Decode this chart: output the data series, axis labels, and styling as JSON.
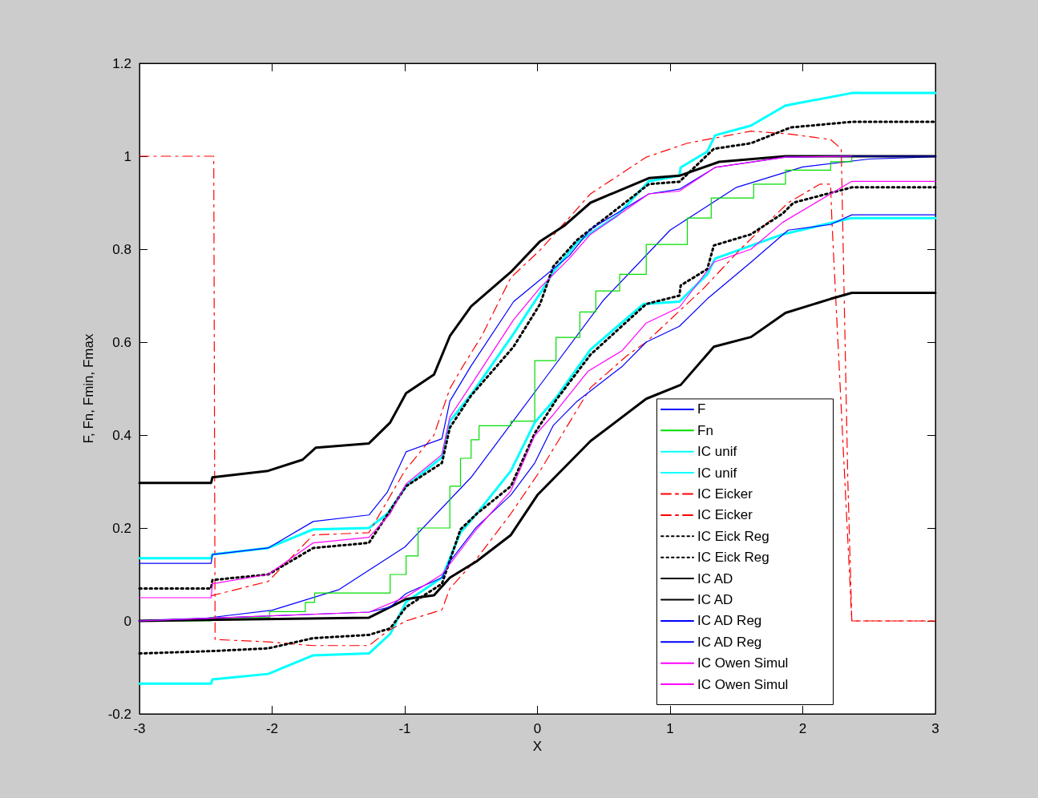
{
  "chart_data": {
    "type": "line",
    "xlabel": "X",
    "ylabel": "F, Fn, Fmin, Fmax",
    "xlim": [
      -3,
      3
    ],
    "xticks": [
      -3,
      -2,
      -1,
      0,
      1,
      2,
      3
    ],
    "ylim": [
      -0.2,
      1.2
    ],
    "yticks": [
      -0.2,
      0,
      0.2,
      0.4,
      0.6,
      0.8,
      1,
      1.2
    ],
    "grid": false,
    "legend": "bottom right",
    "marker": "none",
    "series": [
      {
        "name": "F",
        "color": "#0000ff",
        "line_style": "solid",
        "x": [
          -3,
          -2.5,
          -2,
          -1.5,
          -1,
          -0.5,
          0,
          0.5,
          1,
          1.5,
          2,
          2.5,
          3
        ],
        "values": [
          0.001,
          0.006,
          0.023,
          0.067,
          0.159,
          0.309,
          0.5,
          0.691,
          0.841,
          0.933,
          0.977,
          0.994,
          0.999
        ]
      },
      {
        "name": "Fn",
        "type": "step",
        "color": "#00dd00",
        "line_style": "solid",
        "x": [
          -3,
          -2.46,
          -2.02,
          -1.75,
          -1.68,
          -1.27,
          -1.11,
          -0.99,
          -0.9,
          -0.72,
          -0.66,
          -0.58,
          -0.5,
          -0.44,
          -0.2,
          -0.02,
          0.14,
          0.32,
          0.44,
          0.62,
          0.82,
          1.07,
          1.13,
          1.31,
          1.63,
          1.87,
          2.21,
          2.37,
          3
        ],
        "values": [
          0,
          0.007,
          0.02,
          0.04,
          0.06,
          0.06,
          0.1,
          0.14,
          0.2,
          0.2,
          0.29,
          0.35,
          0.39,
          0.42,
          0.43,
          0.56,
          0.61,
          0.665,
          0.71,
          0.746,
          0.81,
          0.81,
          0.867,
          0.91,
          0.94,
          0.97,
          0.988,
          1,
          1
        ]
      },
      {
        "name": "IC unif",
        "color": "#00ffff",
        "line_style": "solid",
        "x": [
          -3,
          -2.46,
          -2.45,
          -2.03,
          -1.69,
          -1.27,
          -1.13,
          -0.99,
          -0.72,
          -0.66,
          -0.5,
          -0.18,
          0.02,
          0.12,
          0.3,
          0.6,
          0.84,
          1.07,
          1.08,
          1.28,
          1.34,
          1.61,
          1.87,
          2.37,
          3
        ],
        "values": [
          0.135,
          0.135,
          0.143,
          0.157,
          0.197,
          0.2,
          0.231,
          0.29,
          0.352,
          0.43,
          0.487,
          0.618,
          0.705,
          0.751,
          0.815,
          0.872,
          0.946,
          0.958,
          0.976,
          1.01,
          1.045,
          1.066,
          1.109,
          1.136,
          1.136
        ]
      },
      {
        "name": "IC unif",
        "color": "#00ffff",
        "line_style": "solid",
        "x": [
          -3,
          -2.46,
          -2.45,
          -2.03,
          -1.69,
          -1.27,
          -1.11,
          -0.99,
          -0.72,
          -0.58,
          -0.46,
          -0.2,
          -0.02,
          0.14,
          0.4,
          0.8,
          1.07,
          1.28,
          1.34,
          1.85,
          2.37,
          3
        ],
        "values": [
          -0.135,
          -0.135,
          -0.126,
          -0.114,
          -0.074,
          -0.07,
          -0.028,
          0.041,
          0.093,
          0.19,
          0.23,
          0.323,
          0.427,
          0.48,
          0.584,
          0.682,
          0.687,
          0.746,
          0.78,
          0.832,
          0.867,
          0.867
        ]
      },
      {
        "name": "IC Eicker",
        "color": "#ff0000",
        "line_style": "dashed",
        "x": [
          -2.46,
          -2.03,
          -1.69,
          -1.27,
          -1,
          -0.78,
          -0.66,
          -0.56,
          -0.42,
          -0.2,
          0.02,
          0.4,
          0.82,
          1.13,
          1.61,
          1.89,
          2.21,
          2.29,
          2.34,
          2.37,
          3
        ],
        "values": [
          0.054,
          0.085,
          0.185,
          0.19,
          0.323,
          0.4,
          0.5,
          0.549,
          0.613,
          0.739,
          0.798,
          0.919,
          0.998,
          1.028,
          1.054,
          1.048,
          1.036,
          1.016,
          0.3,
          0,
          0
        ]
      },
      {
        "name": "IC Eicker",
        "color": "#ff0000",
        "line_style": "dashed",
        "x": [
          -3,
          -2.44,
          -2.43,
          -2.03,
          -1.69,
          -1.27,
          -1.13,
          -0.99,
          -0.72,
          -0.66,
          -0.46,
          -0.2,
          0.02,
          0.4,
          0.68,
          0.82,
          1.25,
          1.53,
          1.89,
          2.13,
          2.21,
          2.22,
          2.37,
          3
        ],
        "values": [
          1,
          1,
          -0.04,
          -0.045,
          -0.053,
          -0.053,
          -0.022,
          0,
          0.024,
          0.07,
          0.133,
          0.231,
          0.323,
          0.502,
          0.572,
          0.6,
          0.715,
          0.8,
          0.9,
          0.94,
          0.94,
          0.86,
          0,
          0
        ]
      },
      {
        "name": "IC Eick Reg",
        "color": "#000000",
        "line_style": "dotted",
        "x": [
          -3,
          -2.46,
          -2.45,
          -2.03,
          -1.69,
          -1.27,
          -0.99,
          -0.72,
          -0.66,
          -0.5,
          -0.18,
          0.02,
          0.12,
          0.3,
          0.84,
          1.07,
          1.33,
          1.61,
          1.91,
          2.37,
          3
        ],
        "values": [
          0.07,
          0.07,
          0.088,
          0.1,
          0.157,
          0.168,
          0.29,
          0.34,
          0.416,
          0.485,
          0.59,
          0.682,
          0.763,
          0.82,
          0.94,
          0.945,
          1.016,
          1.028,
          1.062,
          1.074,
          1.074
        ]
      },
      {
        "name": "IC Eick Reg",
        "color": "#000000",
        "line_style": "dotted",
        "x": [
          -3,
          -2.46,
          -2.03,
          -1.69,
          -1.27,
          -1.11,
          -0.99,
          -0.72,
          -0.58,
          -0.46,
          -0.2,
          -0.02,
          0.14,
          0.4,
          0.82,
          1.07,
          1.08,
          1.28,
          1.33,
          1.61,
          1.85,
          1.93,
          2.37,
          3
        ],
        "values": [
          -0.07,
          -0.065,
          -0.059,
          -0.037,
          -0.03,
          -0.016,
          0.03,
          0.08,
          0.197,
          0.23,
          0.29,
          0.404,
          0.475,
          0.573,
          0.682,
          0.7,
          0.722,
          0.757,
          0.808,
          0.832,
          0.877,
          0.9,
          0.933,
          0.933
        ]
      },
      {
        "name": "IC AD",
        "color": "#000000",
        "line_style": "solid",
        "x": [
          -3,
          -2.46,
          -2.45,
          -2.03,
          -1.77,
          -1.67,
          -1.27,
          -1.11,
          -0.99,
          -0.78,
          -0.66,
          -0.5,
          -0.2,
          0.02,
          0.2,
          0.4,
          0.84,
          1.07,
          1.37,
          1.87,
          3
        ],
        "values": [
          0.297,
          0.297,
          0.309,
          0.323,
          0.347,
          0.373,
          0.382,
          0.427,
          0.49,
          0.53,
          0.613,
          0.677,
          0.751,
          0.817,
          0.85,
          0.9,
          0.953,
          0.958,
          0.988,
          1,
          1
        ]
      },
      {
        "name": "IC AD",
        "color": "#000000",
        "line_style": "solid",
        "x": [
          -3,
          -1.27,
          -0.99,
          -0.78,
          -0.66,
          -0.46,
          -0.2,
          0,
          0.4,
          0.82,
          1.08,
          1.33,
          1.61,
          1.87,
          2.21,
          2.37,
          3
        ],
        "values": [
          0,
          0.007,
          0.047,
          0.055,
          0.093,
          0.128,
          0.185,
          0.271,
          0.387,
          0.478,
          0.508,
          0.59,
          0.611,
          0.663,
          0.693,
          0.706,
          0.706
        ]
      },
      {
        "name": "IC AD Reg",
        "color": "#0000ff",
        "line_style": "solid",
        "x": [
          -3,
          -2.46,
          -2.45,
          -2.03,
          -1.69,
          -1.27,
          -1.13,
          -0.99,
          -0.72,
          -0.66,
          -0.5,
          -0.18,
          0.02,
          0.24,
          0.4,
          0.84,
          1.07,
          1.34,
          1.87,
          2.37,
          3
        ],
        "values": [
          0.124,
          0.124,
          0.143,
          0.157,
          0.214,
          0.228,
          0.278,
          0.364,
          0.392,
          0.473,
          0.549,
          0.687,
          0.734,
          0.786,
          0.843,
          0.919,
          0.929,
          0.976,
          0.998,
          1,
          1
        ]
      },
      {
        "name": "IC AD Reg",
        "color": "#0000ff",
        "line_style": "solid",
        "x": [
          -3,
          -1.27,
          -1.11,
          -0.99,
          -0.72,
          -0.66,
          -0.46,
          -0.2,
          -0.02,
          0.12,
          0.3,
          0.64,
          0.82,
          1.07,
          1.28,
          1.61,
          1.89,
          2.21,
          2.37,
          3
        ],
        "values": [
          0,
          0.019,
          0.03,
          0.059,
          0.093,
          0.128,
          0.202,
          0.271,
          0.34,
          0.421,
          0.473,
          0.548,
          0.6,
          0.634,
          0.693,
          0.772,
          0.841,
          0.853,
          0.874,
          0.874
        ]
      },
      {
        "name": "IC Owen Simul",
        "color": "#ff00ff",
        "line_style": "solid",
        "x": [
          -3,
          -2.46,
          -2.45,
          -2.03,
          -1.69,
          -1.27,
          -1.11,
          -0.99,
          -0.72,
          -0.66,
          -0.5,
          -0.18,
          0.02,
          0.24,
          0.4,
          0.84,
          1.07,
          1.34,
          1.87,
          2.37
        ],
        "values": [
          0.05,
          0.05,
          0.08,
          0.1,
          0.168,
          0.18,
          0.231,
          0.295,
          0.358,
          0.439,
          0.508,
          0.648,
          0.717,
          0.78,
          0.832,
          0.919,
          0.925,
          0.976,
          0.998,
          1
        ]
      },
      {
        "name": "IC Owen Simul",
        "color": "#ff00ff",
        "line_style": "solid",
        "x": [
          -3,
          -1.27,
          -0.99,
          -0.72,
          -0.46,
          -0.2,
          -0.02,
          0.12,
          0.38,
          0.64,
          0.82,
          1.07,
          1.33,
          1.61,
          1.85,
          2.21,
          2.37,
          3
        ],
        "values": [
          0,
          0.019,
          0.052,
          0.1,
          0.197,
          0.28,
          0.399,
          0.444,
          0.537,
          0.582,
          0.641,
          0.675,
          0.772,
          0.8,
          0.858,
          0.919,
          0.946,
          0.946
        ]
      }
    ]
  }
}
